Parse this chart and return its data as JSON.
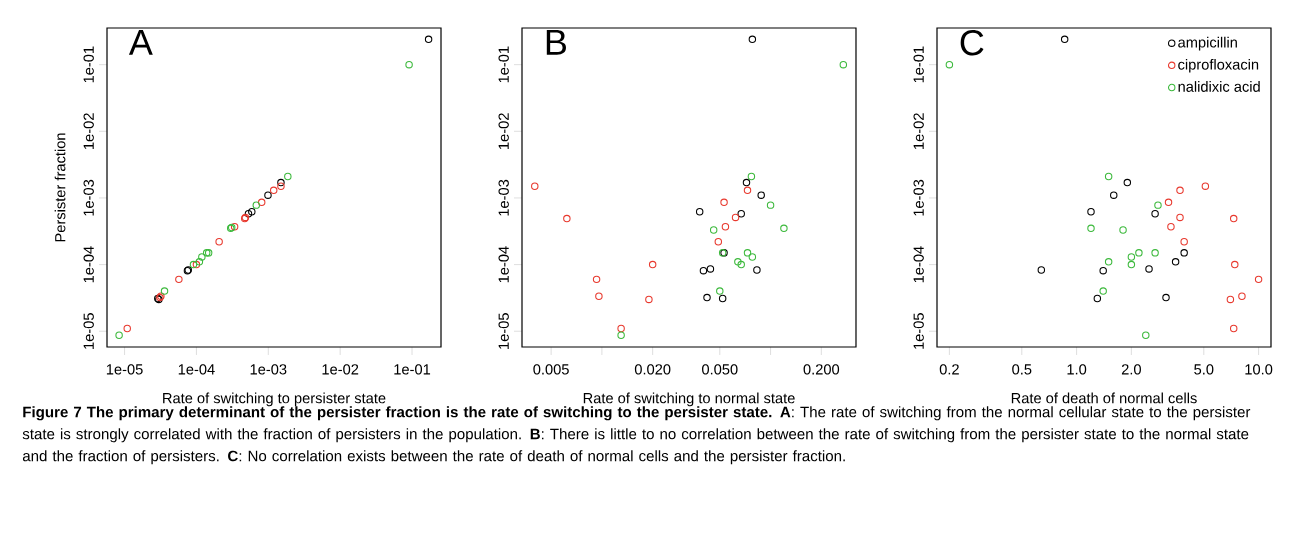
{
  "chart_data": [
    {
      "type": "scatter",
      "title": "A",
      "xlabel": "Rate of switching to persister state",
      "ylabel": "Persister fraction",
      "log": "xy",
      "marker": "circle",
      "grid": false,
      "legend": false,
      "xlim": [
        5.7e-06,
        0.253
      ],
      "ylim": [
        5.8e-06,
        0.355
      ],
      "xticks": [
        {
          "value": 1e-05,
          "label": "1e-05"
        },
        {
          "value": 0.0001,
          "label": "1e-04"
        },
        {
          "value": 0.001,
          "label": "1e-03"
        },
        {
          "value": 0.01,
          "label": "1e-02"
        },
        {
          "value": 0.1,
          "label": "1e-01"
        }
      ],
      "yticks": [
        {
          "value": 1e-05,
          "label": "1e-05"
        },
        {
          "value": 0.0001,
          "label": "1e-04"
        },
        {
          "value": 0.001,
          "label": "1e-03"
        },
        {
          "value": 0.01,
          "label": "1e-02"
        },
        {
          "value": 0.1,
          "label": "1e-01"
        }
      ],
      "series": [
        {
          "color": "#000000",
          "x": [
            0.17,
            0.0015,
            0.00099,
            0.00059,
            0.00053,
            7.7e-05,
            7.5e-05,
            2.9e-05,
            3e-05
          ],
          "values": [
            0.24,
            0.0017,
            0.0011,
            0.00062,
            0.00058,
            8.3e-05,
            8.1e-05,
            3.1e-05,
            3e-05
          ]
        },
        {
          "color": "#e8392e",
          "x": [
            1.09e-05,
            3.1e-05,
            3.2e-05,
            5.7e-05,
            0.0001,
            0.000207,
            0.00034,
            0.00047,
            0.00048,
            0.00081,
            0.00119,
            0.0015
          ],
          "values": [
            1.1e-05,
            3.2e-05,
            3.35e-05,
            6e-05,
            0.0001,
            0.00022,
            0.00037,
            0.00049,
            0.00051,
            0.00086,
            0.0013,
            0.0015
          ]
        },
        {
          "color": "#3cb93c",
          "x": [
            8.4e-06,
            3.6e-05,
            9.1e-05,
            0.00011,
            0.000119,
            0.000139,
            0.000148,
            0.0003,
            0.00031,
            0.00068,
            0.00187,
            0.091
          ],
          "values": [
            8.7e-06,
            4e-05,
            0.0001,
            0.00011,
            0.00013,
            0.00015,
            0.00015,
            0.00035,
            0.00036,
            0.00078,
            0.0021,
            0.1
          ]
        }
      ],
      "annotations": [
        "**Figure 7 The primary determinant of the persister fraction is the rate of switching to the persister state. A**: The rate of switching from the normal cellular state to the persister state is strongly correlated with the fraction of persisters in the population. **B**: There is little to no correlation between the rate of switching from the persister state to the normal state and the fraction of persisters. **C**: No correlation exists between the rate of death of normal cells and the persister fraction."
      ]
    },
    {
      "type": "scatter",
      "title": "B",
      "xlabel": "Rate of switching to normal state",
      "log": "xy",
      "marker": "circle",
      "grid": false,
      "legend": false,
      "xlim": [
        0.00336,
        0.321
      ],
      "ylim": [
        5.8e-06,
        0.355
      ],
      "xticks": [
        {
          "value": 0.005,
          "label": "0.005"
        },
        {
          "value": 0.01,
          "label": null
        },
        {
          "value": 0.02,
          "label": "0.020"
        },
        {
          "value": 0.05,
          "label": "0.050"
        },
        {
          "value": 0.1,
          "label": null
        },
        {
          "value": 0.2,
          "label": "0.200"
        }
      ],
      "yticks": [
        {
          "value": 1e-05,
          "label": "1e-05"
        },
        {
          "value": 0.0001,
          "label": "1e-04"
        },
        {
          "value": 0.001,
          "label": "1e-03"
        },
        {
          "value": 0.01,
          "label": "1e-02"
        },
        {
          "value": 0.1,
          "label": "1e-01"
        }
      ],
      "series": [
        {
          "color": "#000000",
          "x": [
            0.078,
            0.072,
            0.088,
            0.038,
            0.067,
            0.053,
            0.044,
            0.04,
            0.083,
            0.042,
            0.052
          ],
          "values": [
            0.24,
            0.0017,
            0.0011,
            0.00062,
            0.00058,
            0.00015,
            8.6e-05,
            8.1e-05,
            8.3e-05,
            3.2e-05,
            3.1e-05
          ]
        },
        {
          "color": "#e8392e",
          "x": [
            0.004,
            0.0062,
            0.0093,
            0.0096,
            0.013,
            0.019,
            0.02,
            0.049,
            0.053,
            0.054,
            0.062,
            0.073
          ],
          "values": [
            0.0015,
            0.00049,
            6e-05,
            3.35e-05,
            1.1e-05,
            3e-05,
            0.0001,
            0.00022,
            0.00086,
            0.00037,
            0.00051,
            0.0013
          ]
        },
        {
          "color": "#3cb93c",
          "x": [
            0.013,
            0.05,
            0.046,
            0.052,
            0.064,
            0.067,
            0.073,
            0.078,
            0.077,
            0.1,
            0.12,
            0.27
          ],
          "values": [
            8.7e-06,
            4e-05,
            0.00033,
            0.00015,
            0.00011,
            0.0001,
            0.00015,
            0.00013,
            0.0021,
            0.00078,
            0.00035,
            0.1
          ]
        }
      ]
    },
    {
      "type": "scatter",
      "title": "C",
      "xlabel": "Rate of death of normal cells",
      "log": "xy",
      "marker": "circle",
      "grid": false,
      "legend": "top right",
      "xlim": [
        0.171,
        11.7
      ],
      "ylim": [
        5.8e-06,
        0.355
      ],
      "xticks": [
        {
          "value": 0.2,
          "label": "0.2"
        },
        {
          "value": 0.5,
          "label": "0.5"
        },
        {
          "value": 1,
          "label": "1.0"
        },
        {
          "value": 2,
          "label": "2.0"
        },
        {
          "value": 5,
          "label": "5.0"
        },
        {
          "value": 10,
          "label": "10.0"
        }
      ],
      "yticks": [
        {
          "value": 1e-05,
          "label": "1e-05"
        },
        {
          "value": 0.0001,
          "label": "1e-04"
        },
        {
          "value": 0.001,
          "label": "1e-03"
        },
        {
          "value": 0.01,
          "label": "1e-02"
        },
        {
          "value": 0.1,
          "label": "1e-01"
        }
      ],
      "series": [
        {
          "name": "ampicillin",
          "color": "#000000",
          "x": [
            0.86,
            1.9,
            1.6,
            1.2,
            2.7,
            3.9,
            3.5,
            0.64,
            1.4,
            2.5,
            1.3,
            3.1
          ],
          "values": [
            0.24,
            0.0017,
            0.0011,
            0.00062,
            0.00058,
            0.00015,
            0.00011,
            8.3e-05,
            8.1e-05,
            8.6e-05,
            3.1e-05,
            3.2e-05
          ]
        },
        {
          "name": "ciprofloxacin",
          "color": "#e8392e",
          "x": [
            5.1,
            3.7,
            3.2,
            3.7,
            3.3,
            3.9,
            7.3,
            7.4,
            10.0,
            8.1,
            7.0,
            7.3
          ],
          "values": [
            0.0015,
            0.0013,
            0.00086,
            0.00051,
            0.00037,
            0.00022,
            0.00049,
            0.0001,
            6e-05,
            3.35e-05,
            3e-05,
            1.1e-05
          ]
        },
        {
          "name": "nalidixic acid",
          "color": "#3cb93c",
          "x": [
            0.2,
            1.5,
            2.8,
            1.2,
            1.8,
            2.2,
            2.7,
            2.0,
            1.5,
            2.0,
            1.4,
            2.4
          ],
          "values": [
            0.1,
            0.0021,
            0.00078,
            0.00035,
            0.00033,
            0.00015,
            0.00015,
            0.00013,
            0.00011,
            0.0001,
            4e-05,
            8.7e-06
          ]
        }
      ]
    }
  ]
}
